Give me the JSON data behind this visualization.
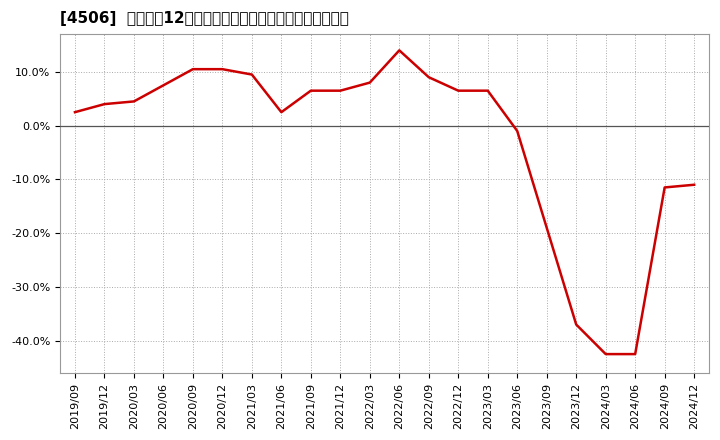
{
  "title": "[4506]  売上高の12か月移動合計の対前年同期増減率の推移",
  "x_labels": [
    "2019/09",
    "2019/12",
    "2020/03",
    "2020/06",
    "2020/09",
    "2020/12",
    "2021/03",
    "2021/06",
    "2021/09",
    "2021/12",
    "2022/03",
    "2022/06",
    "2022/09",
    "2022/12",
    "2023/03",
    "2023/06",
    "2023/09",
    "2023/12",
    "2024/03",
    "2024/06",
    "2024/09",
    "2024/12"
  ],
  "values": [
    2.5,
    4.0,
    4.5,
    7.5,
    10.5,
    10.5,
    9.5,
    2.5,
    6.5,
    6.5,
    8.0,
    14.0,
    9.0,
    6.5,
    6.5,
    -1.0,
    -19.0,
    -37.0,
    -42.5,
    -42.5,
    -11.5,
    -11.0
  ],
  "line_color": "#cc0000",
  "line_width": 1.8,
  "background_color": "#ffffff",
  "plot_bg_color": "#ffffff",
  "grid_color": "#aaaaaa",
  "zero_line_color": "#555555",
  "ylim": [
    -46,
    17
  ],
  "yticks": [
    -40,
    -30,
    -20,
    -10,
    0,
    10
  ],
  "title_fontsize": 11,
  "tick_fontsize": 8
}
